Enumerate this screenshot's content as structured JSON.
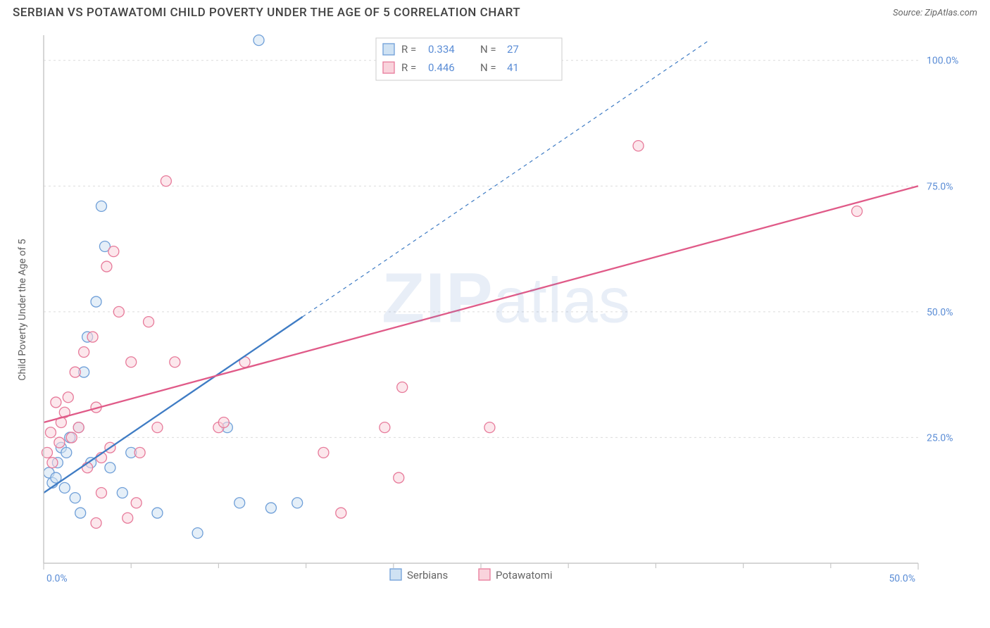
{
  "title": "SERBIAN VS POTAWATOMI CHILD POVERTY UNDER THE AGE OF 5 CORRELATION CHART",
  "source_label": "Source: ZipAtlas.com",
  "ylabel": "Child Poverty Under the Age of 5",
  "watermark_text": "ZIPatlas",
  "chart": {
    "type": "scatter",
    "xlim": [
      0,
      50
    ],
    "ylim": [
      0,
      105
    ],
    "background_color": "#ffffff",
    "grid_color": "#dcdcdc",
    "axis_color": "#c8c8c8",
    "label_color": "#5b8dd6",
    "y_ticks": [
      25,
      50,
      75,
      100
    ],
    "y_tick_labels": [
      "25.0%",
      "50.0%",
      "75.0%",
      "100.0%"
    ],
    "x_ticks": [
      0,
      50
    ],
    "x_tick_labels": [
      "0.0%",
      "50.0%"
    ],
    "x_minor_ticks": [
      5,
      10,
      15,
      20,
      25,
      30,
      35,
      40,
      45
    ],
    "marker_radius": 7.5,
    "marker_stroke_width": 1.3,
    "series": [
      {
        "name": "Serbians",
        "fill": "#cfe2f3",
        "stroke": "#6f9fd8",
        "fill_opacity": 0.55,
        "points": [
          [
            0.3,
            18
          ],
          [
            0.5,
            16
          ],
          [
            0.7,
            17
          ],
          [
            0.8,
            20
          ],
          [
            1.0,
            23
          ],
          [
            1.2,
            15
          ],
          [
            1.3,
            22
          ],
          [
            1.5,
            25
          ],
          [
            1.8,
            13
          ],
          [
            2.0,
            27
          ],
          [
            2.3,
            38
          ],
          [
            2.5,
            45
          ],
          [
            2.7,
            20
          ],
          [
            3.0,
            52
          ],
          [
            3.3,
            71
          ],
          [
            3.5,
            63
          ],
          [
            3.8,
            19
          ],
          [
            4.5,
            14
          ],
          [
            5.0,
            22
          ],
          [
            6.5,
            10
          ],
          [
            8.8,
            6
          ],
          [
            10.5,
            27
          ],
          [
            11.2,
            12
          ],
          [
            12.3,
            104
          ],
          [
            13.0,
            11
          ],
          [
            14.5,
            12
          ],
          [
            2.1,
            10
          ]
        ],
        "regression": {
          "x1": 0,
          "y1": 14,
          "x2": 14.8,
          "y2": 49,
          "dashed_extend_to_x": 38
        },
        "line_color": "#3f7cc4",
        "line_width": 2.3
      },
      {
        "name": "Potawatomi",
        "fill": "#f9d3dc",
        "stroke": "#e77a9a",
        "fill_opacity": 0.55,
        "points": [
          [
            0.2,
            22
          ],
          [
            0.4,
            26
          ],
          [
            0.5,
            20
          ],
          [
            0.7,
            32
          ],
          [
            0.9,
            24
          ],
          [
            1.0,
            28
          ],
          [
            1.2,
            30
          ],
          [
            1.4,
            33
          ],
          [
            1.6,
            25
          ],
          [
            1.8,
            38
          ],
          [
            2.0,
            27
          ],
          [
            2.3,
            42
          ],
          [
            2.5,
            19
          ],
          [
            2.8,
            45
          ],
          [
            3.0,
            31
          ],
          [
            3.3,
            21
          ],
          [
            3.6,
            59
          ],
          [
            3.8,
            23
          ],
          [
            4.0,
            62
          ],
          [
            4.3,
            50
          ],
          [
            5.0,
            40
          ],
          [
            5.5,
            22
          ],
          [
            6.0,
            48
          ],
          [
            6.5,
            27
          ],
          [
            7.0,
            76
          ],
          [
            7.5,
            40
          ],
          [
            3.3,
            14
          ],
          [
            4.8,
            9
          ],
          [
            5.3,
            12
          ],
          [
            3.0,
            8
          ],
          [
            10.0,
            27
          ],
          [
            10.3,
            28
          ],
          [
            11.5,
            40
          ],
          [
            16.0,
            22
          ],
          [
            17.0,
            10
          ],
          [
            19.5,
            27
          ],
          [
            20.3,
            17
          ],
          [
            20.5,
            35
          ],
          [
            25.5,
            27
          ],
          [
            34.0,
            83
          ],
          [
            46.5,
            70
          ]
        ],
        "regression": {
          "x1": 0,
          "y1": 28,
          "x2": 50,
          "y2": 75
        },
        "line_color": "#e05a88",
        "line_width": 2.3
      }
    ],
    "legend_top": {
      "border_color": "#cccccc",
      "bg": "#ffffff",
      "text_color_label": "#666666",
      "text_color_value": "#5b8dd6",
      "rows": [
        {
          "swatch_fill": "#cfe2f3",
          "swatch_stroke": "#6f9fd8",
          "r_label": "R =",
          "r": "0.334",
          "n_label": "N =",
          "n": "27"
        },
        {
          "swatch_fill": "#f9d3dc",
          "swatch_stroke": "#e77a9a",
          "r_label": "R =",
          "r": "0.446",
          "n_label": "N =",
          "n": "41"
        }
      ]
    },
    "legend_bottom": {
      "items": [
        {
          "label": "Serbians",
          "fill": "#cfe2f3",
          "stroke": "#6f9fd8"
        },
        {
          "label": "Potawatomi",
          "fill": "#f9d3dc",
          "stroke": "#e77a9a"
        }
      ],
      "text_color": "#666666"
    }
  }
}
